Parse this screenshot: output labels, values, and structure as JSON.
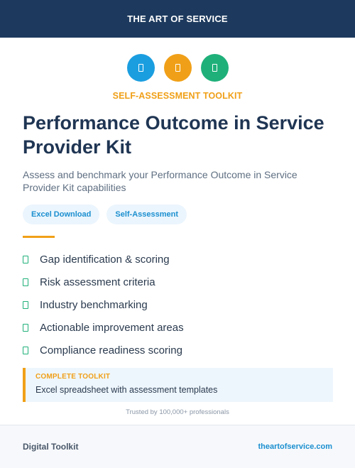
{
  "header": {
    "title": "THE ART OF SERVICE"
  },
  "icons": [
    {
      "name": "document-icon",
      "color": "#1b9ee0"
    },
    {
      "name": "document-icon",
      "color": "#f0a018"
    },
    {
      "name": "document-icon",
      "color": "#1fb07a"
    }
  ],
  "kicker": "SELF-ASSESSMENT TOOLKIT",
  "title": "Performance Outcome in Service Provider Kit",
  "subtitle": "Assess and benchmark your Performance Outcome in Service Provider Kit capabilities",
  "tags": [
    "Excel Download",
    "Self-Assessment"
  ],
  "features": [
    "Gap identification & scoring",
    "Risk assessment criteria",
    "Industry benchmarking",
    "Actionable improvement areas",
    "Compliance readiness scoring"
  ],
  "callout": {
    "kicker": "COMPLETE TOOLKIT",
    "text": "Excel spreadsheet with assessment templates"
  },
  "trusted": "Trusted by 100,000+ professionals",
  "footer": {
    "left": "Digital Toolkit",
    "right": "theartofservice.com"
  },
  "colors": {
    "navy": "#1d3a5e",
    "accent": "#f0a018",
    "blue": "#1b9ee0",
    "green": "#1fb07a"
  }
}
